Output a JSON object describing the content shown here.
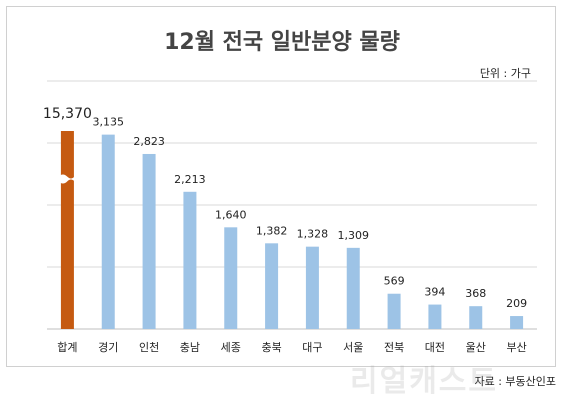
{
  "chart_data": {
    "type": "bar",
    "title": "12월 전국 일반분양 물량",
    "unit_label": "단위 : 가구",
    "categories": [
      "합계",
      "경기",
      "인천",
      "충남",
      "세종",
      "충북",
      "대구",
      "서울",
      "전북",
      "대전",
      "울산",
      "부산"
    ],
    "values": [
      15370,
      3135,
      2823,
      2213,
      1640,
      1382,
      1328,
      1309,
      569,
      394,
      368,
      209
    ],
    "value_labels": [
      "15,370",
      "3,135",
      "2,823",
      "2,213",
      "1,640",
      "1,382",
      "1,328",
      "1,309",
      "569",
      "394",
      "368",
      "209"
    ],
    "axis_break": true,
    "grid": true,
    "colors": {
      "total": "#c55a11",
      "regional": "#9dc3e6"
    }
  },
  "source": "자료 : 부동산인포",
  "watermark": "리얼캐스트"
}
